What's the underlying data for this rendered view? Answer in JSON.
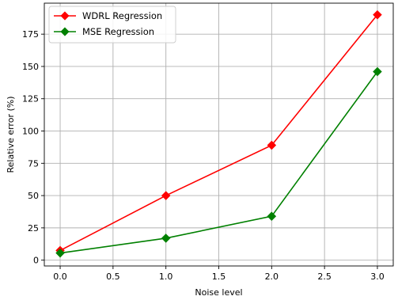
{
  "chart_data": {
    "type": "line",
    "title": "",
    "xlabel": "Noise level",
    "ylabel": "Relative error (%)",
    "x": [
      0.0,
      1.0,
      2.0,
      3.0
    ],
    "xlim": [
      -0.15,
      3.15
    ],
    "ylim": [
      -4.5,
      199
    ],
    "xticks": [
      0.0,
      0.5,
      1.0,
      1.5,
      2.0,
      2.5,
      3.0
    ],
    "xtick_labels": [
      "0.0",
      "0.5",
      "1.0",
      "1.5",
      "2.0",
      "2.5",
      "3.0"
    ],
    "yticks": [
      0,
      25,
      50,
      75,
      100,
      125,
      150,
      175
    ],
    "ytick_labels": [
      "0",
      "25",
      "50",
      "75",
      "100",
      "125",
      "150",
      "175"
    ],
    "grid": true,
    "legend_position": "upper-left",
    "series": [
      {
        "name": "WDRL Regression",
        "color": "#ff0000",
        "marker": "diamond",
        "values": [
          7.5,
          50,
          89,
          190
        ]
      },
      {
        "name": "MSE Regression",
        "color": "#008000",
        "marker": "diamond",
        "values": [
          5.5,
          17,
          34,
          146
        ]
      }
    ]
  }
}
